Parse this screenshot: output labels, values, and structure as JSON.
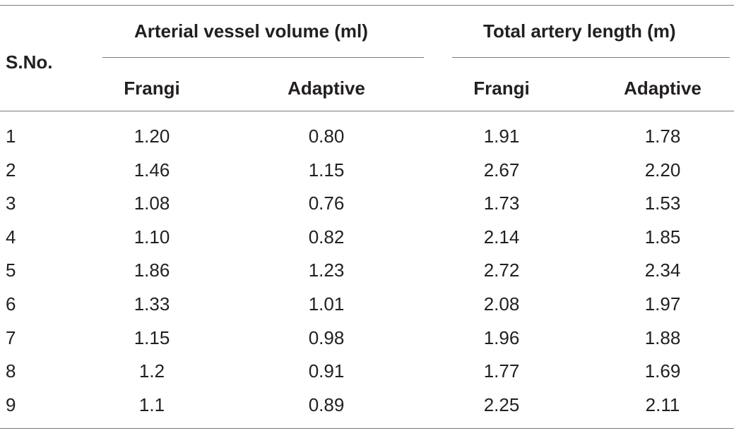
{
  "table": {
    "group_headers": [
      "Arterial vessel volume (ml)",
      "Total artery length (m)"
    ],
    "row_header": "S.No.",
    "sub_headers": [
      "Frangi",
      "Adaptive",
      "Frangi",
      "Adaptive"
    ],
    "rows": [
      [
        "1",
        "1.20",
        "0.80",
        "1.91",
        "1.78"
      ],
      [
        "2",
        "1.46",
        "1.15",
        "2.67",
        "2.20"
      ],
      [
        "3",
        "1.08",
        "0.76",
        "1.73",
        "1.53"
      ],
      [
        "4",
        "1.10",
        "0.82",
        "2.14",
        "1.85"
      ],
      [
        "5",
        "1.86",
        "1.23",
        "2.72",
        "2.34"
      ],
      [
        "6",
        "1.33",
        "1.01",
        "2.08",
        "1.97"
      ],
      [
        "7",
        "1.15",
        "0.98",
        "1.96",
        "1.88"
      ],
      [
        "8",
        "1.2",
        "0.91",
        "1.77",
        "1.69"
      ],
      [
        "9",
        "1.1",
        "0.89",
        "2.25",
        "2.11"
      ]
    ]
  }
}
